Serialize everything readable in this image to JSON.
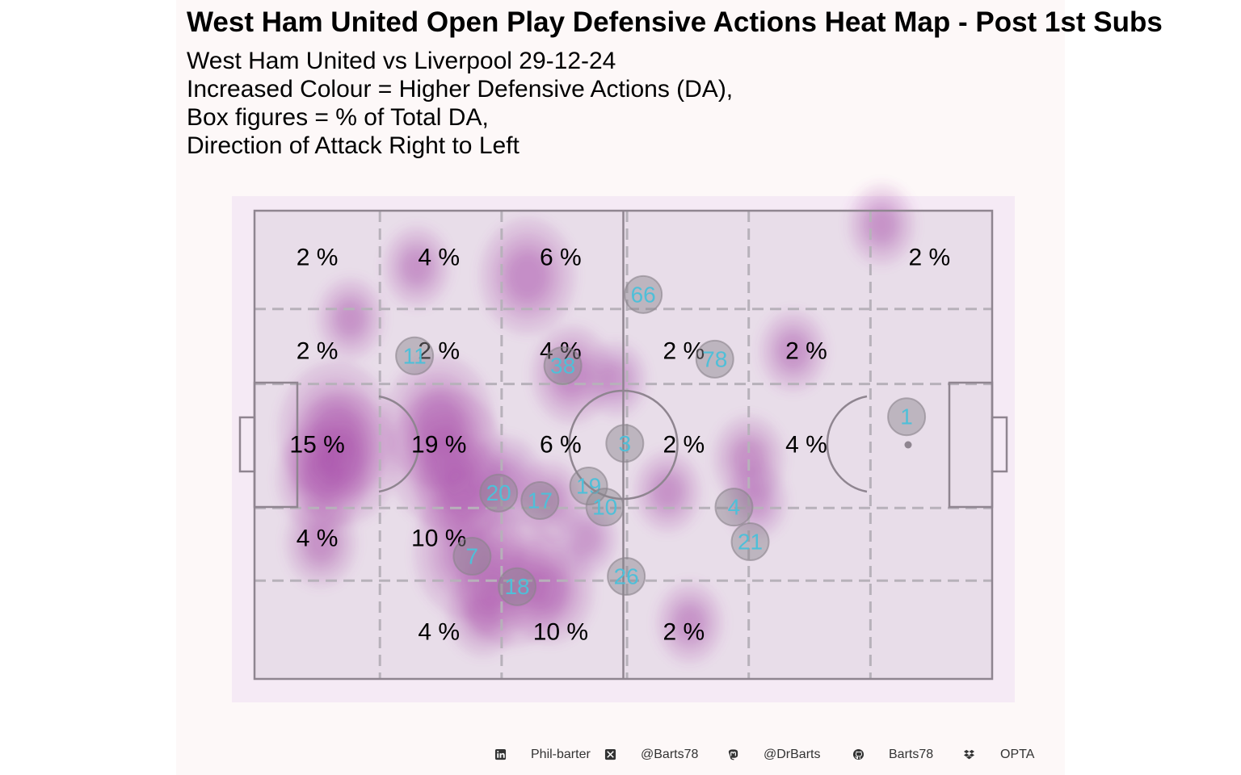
{
  "title": "West Ham United Open Play Defensive Actions Heat Map - Post 1st Subs",
  "subtitle_lines": [
    "West Ham United vs Liverpool 29-12-24",
    "Increased Colour = Higher Defensive Actions (DA),",
    "Box figures = % of Total DA,",
    "Direction of Attack Right to Left"
  ],
  "colors": {
    "panel_bg": "#fdf8f8",
    "pitch_bg": "#f5eaf5",
    "pitch_field": "#e8dde9",
    "pitch_lines": "#8f8590",
    "zone_lines": "#b7b1ba",
    "density": "#a54aa8",
    "marker_fill": "#8a848c",
    "marker_text": "#4fbfd8",
    "label_text": "#000000"
  },
  "chart_data": {
    "type": "heatmap",
    "x_range": [
      0,
      100
    ],
    "y_range": [
      0,
      100
    ],
    "grid_x_breaks": [
      0,
      17,
      33.5,
      50.5,
      67,
      83.5,
      100
    ],
    "grid_y_breaks": [
      0,
      21,
      37,
      63.5,
      79,
      100
    ],
    "zone_percentages": [
      {
        "x": 8.5,
        "y": 10,
        "label": "2 %"
      },
      {
        "x": 25,
        "y": 10,
        "label": "4 %"
      },
      {
        "x": 41.5,
        "y": 10,
        "label": "6 %"
      },
      {
        "x": 91.5,
        "y": 10,
        "label": "2 %"
      },
      {
        "x": 8.5,
        "y": 30,
        "label": "2 %"
      },
      {
        "x": 25,
        "y": 30,
        "label": "2 %"
      },
      {
        "x": 41.5,
        "y": 30,
        "label": "4 %"
      },
      {
        "x": 58.2,
        "y": 30,
        "label": "2 %"
      },
      {
        "x": 74.8,
        "y": 30,
        "label": "2 %"
      },
      {
        "x": 8.5,
        "y": 50,
        "label": "15 %"
      },
      {
        "x": 25,
        "y": 50,
        "label": "19 %"
      },
      {
        "x": 41.5,
        "y": 50,
        "label": "6 %"
      },
      {
        "x": 58.2,
        "y": 50,
        "label": "2 %"
      },
      {
        "x": 74.8,
        "y": 50,
        "label": "4 %"
      },
      {
        "x": 8.5,
        "y": 70,
        "label": "4 %"
      },
      {
        "x": 25,
        "y": 70,
        "label": "10 %"
      },
      {
        "x": 25,
        "y": 90,
        "label": "4 %"
      },
      {
        "x": 41.5,
        "y": 90,
        "label": "10 %"
      },
      {
        "x": 58.2,
        "y": 90,
        "label": "2 %"
      }
    ],
    "player_positions": [
      {
        "number": "66",
        "x": 52.7,
        "y": 17.9
      },
      {
        "number": "11",
        "x": 21.7,
        "y": 31.0
      },
      {
        "number": "38",
        "x": 41.8,
        "y": 33.1
      },
      {
        "number": "78",
        "x": 62.4,
        "y": 31.7
      },
      {
        "number": "1",
        "x": 88.4,
        "y": 44.0
      },
      {
        "number": "3",
        "x": 50.2,
        "y": 49.7
      },
      {
        "number": "20",
        "x": 33.1,
        "y": 60.3
      },
      {
        "number": "17",
        "x": 38.7,
        "y": 61.9
      },
      {
        "number": "19",
        "x": 45.3,
        "y": 58.8
      },
      {
        "number": "10",
        "x": 47.5,
        "y": 63.3
      },
      {
        "number": "4",
        "x": 65.0,
        "y": 63.3
      },
      {
        "number": "21",
        "x": 67.2,
        "y": 70.7
      },
      {
        "number": "7",
        "x": 29.5,
        "y": 73.8
      },
      {
        "number": "18",
        "x": 35.6,
        "y": 80.3
      },
      {
        "number": "26",
        "x": 50.4,
        "y": 78.1
      }
    ],
    "density_points": [
      {
        "x": 11,
        "y": 47,
        "w": 1.0
      },
      {
        "x": 12,
        "y": 53,
        "w": 0.9
      },
      {
        "x": 9,
        "y": 57,
        "w": 0.6
      },
      {
        "x": 25,
        "y": 45,
        "w": 0.9
      },
      {
        "x": 26,
        "y": 53,
        "w": 1.0
      },
      {
        "x": 28,
        "y": 60,
        "w": 0.6
      },
      {
        "x": 29,
        "y": 73,
        "w": 0.9
      },
      {
        "x": 35,
        "y": 79,
        "w": 0.9
      },
      {
        "x": 40,
        "y": 81,
        "w": 0.6
      },
      {
        "x": 31,
        "y": 86,
        "w": 0.4
      },
      {
        "x": 37,
        "y": 14,
        "w": 0.7
      },
      {
        "x": 22,
        "y": 12,
        "w": 0.35
      },
      {
        "x": 13,
        "y": 23,
        "w": 0.35
      },
      {
        "x": 9,
        "y": 71,
        "w": 0.4
      },
      {
        "x": 43,
        "y": 35,
        "w": 0.5
      },
      {
        "x": 49,
        "y": 36,
        "w": 0.3
      },
      {
        "x": 34,
        "y": 58,
        "w": 0.45
      },
      {
        "x": 40,
        "y": 62,
        "w": 0.35
      },
      {
        "x": 56,
        "y": 60,
        "w": 0.35
      },
      {
        "x": 67,
        "y": 53,
        "w": 0.4
      },
      {
        "x": 68,
        "y": 62,
        "w": 0.3
      },
      {
        "x": 73,
        "y": 30,
        "w": 0.35
      },
      {
        "x": 85,
        "y": 3,
        "w": 0.35
      },
      {
        "x": 59,
        "y": 88,
        "w": 0.35
      },
      {
        "x": 45,
        "y": 70,
        "w": 0.3
      }
    ]
  },
  "footer": {
    "items": [
      {
        "icon": "linkedin-icon",
        "text": "Phil-barter"
      },
      {
        "icon": "x-icon",
        "text": "@Barts78"
      },
      {
        "icon": "mastodon-icon",
        "text": "@DrBarts"
      },
      {
        "icon": "github-icon",
        "text": "Barts78"
      },
      {
        "icon": "dropbox-icon",
        "text": "OPTA"
      }
    ]
  }
}
